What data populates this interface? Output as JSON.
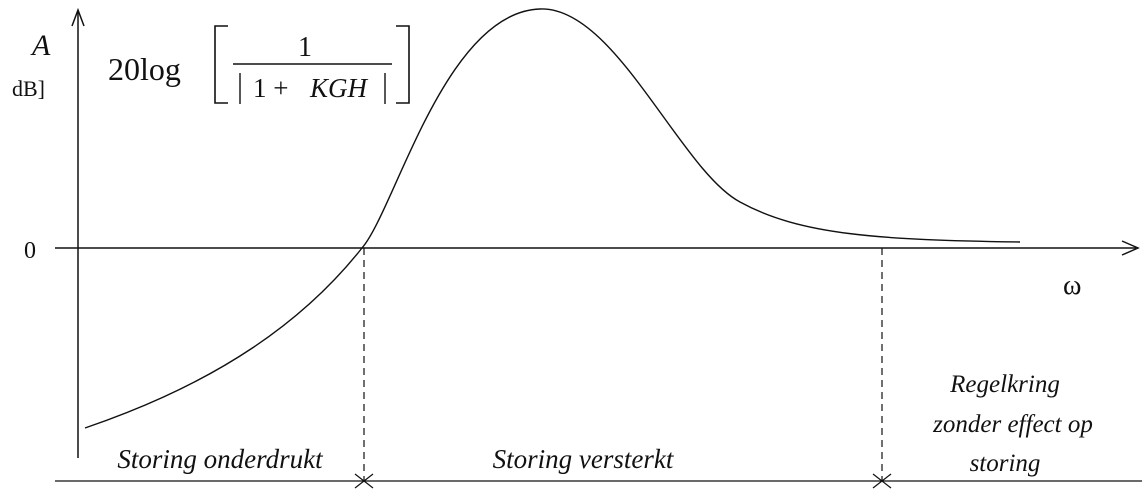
{
  "axes": {
    "y_label": "A",
    "y_unit": "dB]",
    "x_label": "ω",
    "zero_label": "0"
  },
  "formula": {
    "prefix": "20log",
    "numerator": "1",
    "denominator_constant": "1 +",
    "denominator_variable": "KGH"
  },
  "regions": {
    "suppressed": "Storing onderdrukt",
    "amplified": "Storing versterkt",
    "no_effect_line1": "Regelkring",
    "no_effect_line2": "zonder effect op",
    "no_effect_line3": "storing"
  },
  "colors": {
    "ink": "#111111",
    "background": "#ffffff"
  }
}
